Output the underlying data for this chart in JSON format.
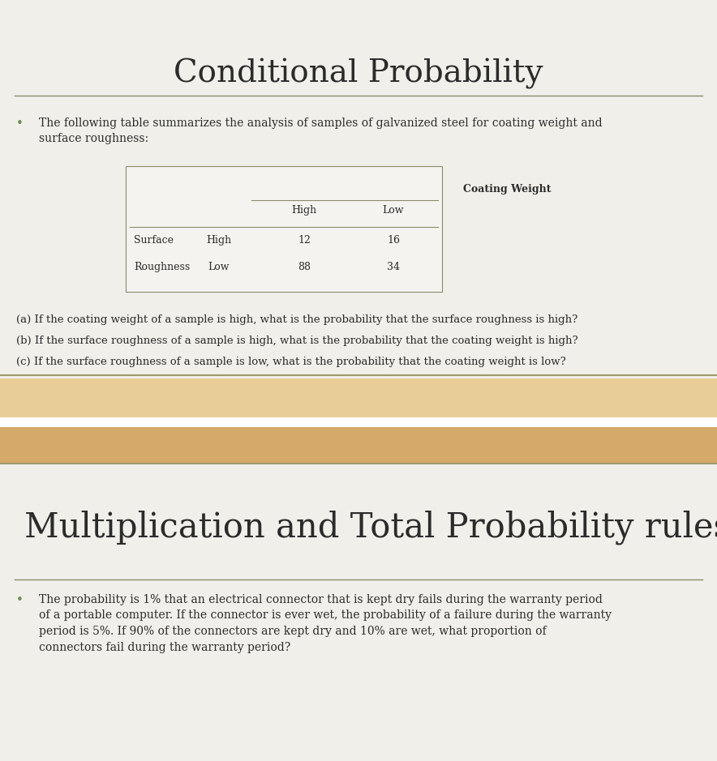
{
  "title1": "Conditional Probability",
  "title2": "Multiplication and Total Probability rules",
  "bullet1_text": "The following table summarizes the analysis of samples of galvanized steel for coating weight and\nsurface roughness:",
  "table_header_col": "Coating Weight",
  "table_col_labels": [
    "High",
    "Low"
  ],
  "table_row_label1": "Surface",
  "table_row_label2": "Roughness",
  "table_row_sub1": "High",
  "table_row_sub2": "Low",
  "table_data": [
    [
      12,
      16
    ],
    [
      88,
      34
    ]
  ],
  "qa_lines": [
    "(a) If the coating weight of a sample is high, what is the probability that the surface roughness is high?",
    "(b) If the surface roughness of a sample is high, what is the probability that the coating weight is high?",
    "(c) If the surface roughness of a sample is low, what is the probability that the coating weight is low?"
  ],
  "bullet2_text": "The probability is 1% that an electrical connector that is kept dry fails during the warranty period\nof a portable computer. If the connector is ever wet, the probability of a failure during the warranty\nperiod is 5%. If 90% of the connectors are kept dry and 10% are wet, what proportion of\nconnectors fail during the warranty period?",
  "bg_color": "#f0efea",
  "text_color": "#2b2b2b",
  "title_font": "serif",
  "body_font": "serif",
  "separator_color": "#8b8b6b",
  "band_color_light": "#e8ce96",
  "band_color_dark": "#d4a96a",
  "band_border_color": "#9b9b6b",
  "table_border_color": "#8b8b6b",
  "table_bg": "#f5f3ef",
  "bullet_color": "#6b8b4b",
  "white_color": "#ffffff",
  "fig_width": 8.84,
  "fig_height": 9.39,
  "dpi": 100
}
